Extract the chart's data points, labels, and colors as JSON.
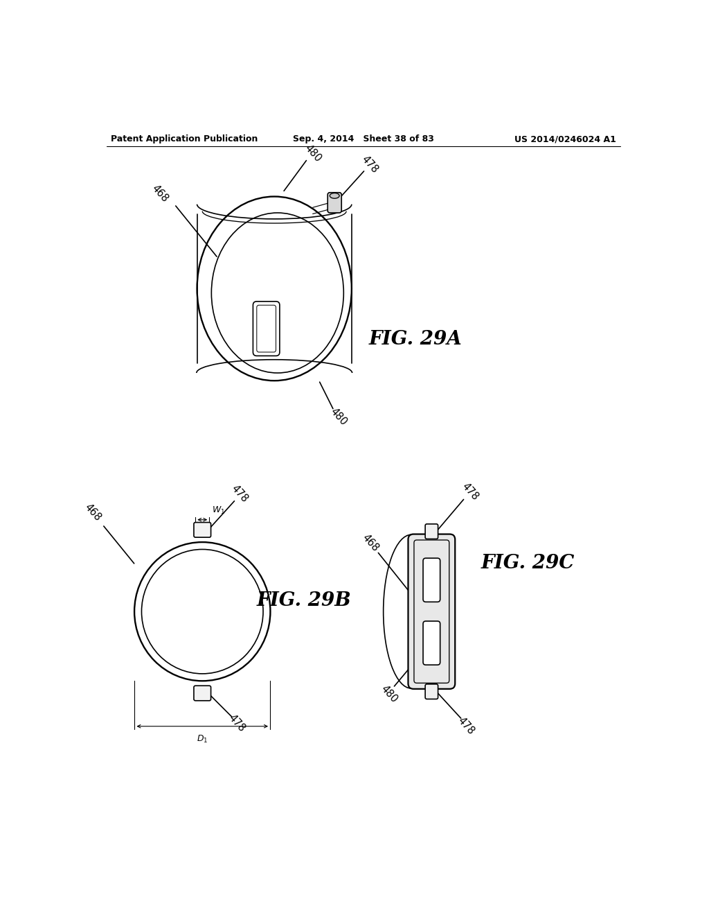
{
  "background_color": "#ffffff",
  "header_left": "Patent Application Publication",
  "header_mid": "Sep. 4, 2014   Sheet 38 of 83",
  "header_right": "US 2014/0246024 A1",
  "line_color": "#000000",
  "line_width": 1.2,
  "fig_label_fontsize": 20,
  "annotation_fontsize": 10.5
}
